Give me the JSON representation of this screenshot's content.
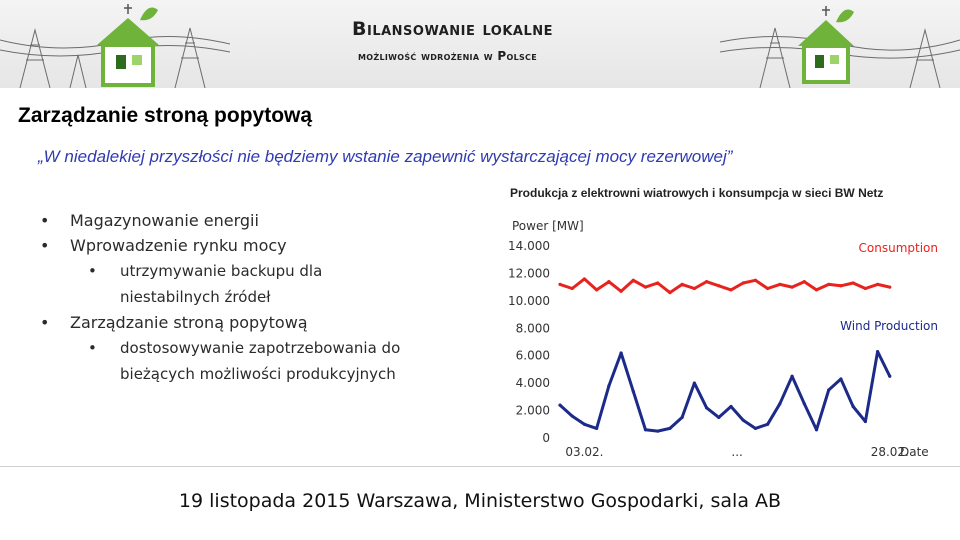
{
  "header": {
    "brand_title": "Bilansowanie lokalne",
    "brand_subtitle": "możliwość wdrożenia w Polsce",
    "accent_green": "#6fb33a",
    "house_colors": [
      "#6fb33a",
      "#ffffff",
      "#2e6b1e"
    ]
  },
  "slide": {
    "title": "Zarządzanie stroną popytową",
    "quote": "„W niedalekiej przyszłości nie będziemy wstanie zapewnić wystarczającej mocy rezerwowej”",
    "quote_color": "#2f3bb0",
    "bullets": [
      {
        "level": 1,
        "text": "Magazynowanie energii"
      },
      {
        "level": 1,
        "text": "Wprowadzenie rynku mocy"
      },
      {
        "level": 2,
        "text": "utrzymywanie backupu dla niestabilnych źródeł"
      },
      {
        "level": 1,
        "text": "Zarządzanie stroną popytową"
      },
      {
        "level": 2,
        "text": "dostosowywanie zapotrzebowania do bieżących możliwości produkcyjnych"
      }
    ]
  },
  "chart_caption": "Produkcja z elektrowni wiatrowych i konsumpcja w sieci BW Netz",
  "chart_data": {
    "type": "line",
    "ylabel": "Power [MW]",
    "xlabel": "Date",
    "ylim": [
      0,
      14000
    ],
    "y_ticks": [
      "0",
      "2.000",
      "4.000",
      "6.000",
      "8.000",
      "10.000",
      "12.000",
      "14.000"
    ],
    "y_tick_values": [
      0,
      2000,
      4000,
      6000,
      8000,
      10000,
      12000,
      14000
    ],
    "x_ticks": [
      "03.02.",
      "...",
      "28.02."
    ],
    "x_tick_positions": [
      3,
      15.5,
      28
    ],
    "xlim": [
      1,
      29
    ],
    "grid": false,
    "series": [
      {
        "name": "Consumption",
        "color": "#e8231e",
        "x": [
          1,
          2,
          3,
          4,
          5,
          6,
          7,
          8,
          9,
          10,
          11,
          12,
          13,
          14,
          15,
          16,
          17,
          18,
          19,
          20,
          21,
          22,
          23,
          24,
          25,
          26,
          27,
          28
        ],
        "values": [
          11200,
          10900,
          11600,
          10800,
          11400,
          10700,
          11500,
          11000,
          11300,
          10600,
          11200,
          10900,
          11400,
          11100,
          10800,
          11300,
          11500,
          10900,
          11200,
          11000,
          11400,
          10800,
          11200,
          11100,
          11300,
          10900,
          11200,
          11000
        ]
      },
      {
        "name": "Wind Production",
        "color": "#1c2a8a",
        "x": [
          1,
          2,
          3,
          4,
          5,
          6,
          7,
          8,
          9,
          10,
          11,
          12,
          13,
          14,
          15,
          16,
          17,
          18,
          19,
          20,
          21,
          22,
          23,
          24,
          25,
          26,
          27,
          28
        ],
        "values": [
          2400,
          1600,
          1000,
          700,
          3800,
          6200,
          3400,
          600,
          500,
          700,
          1500,
          4000,
          2200,
          1500,
          2300,
          1300,
          700,
          1000,
          2500,
          4500,
          2500,
          600,
          3500,
          4300,
          2300,
          1200,
          6300,
          4500
        ]
      }
    ]
  },
  "footer": "19 listopada 2015 Warszawa, Ministerstwo Gospodarki, sala AB"
}
